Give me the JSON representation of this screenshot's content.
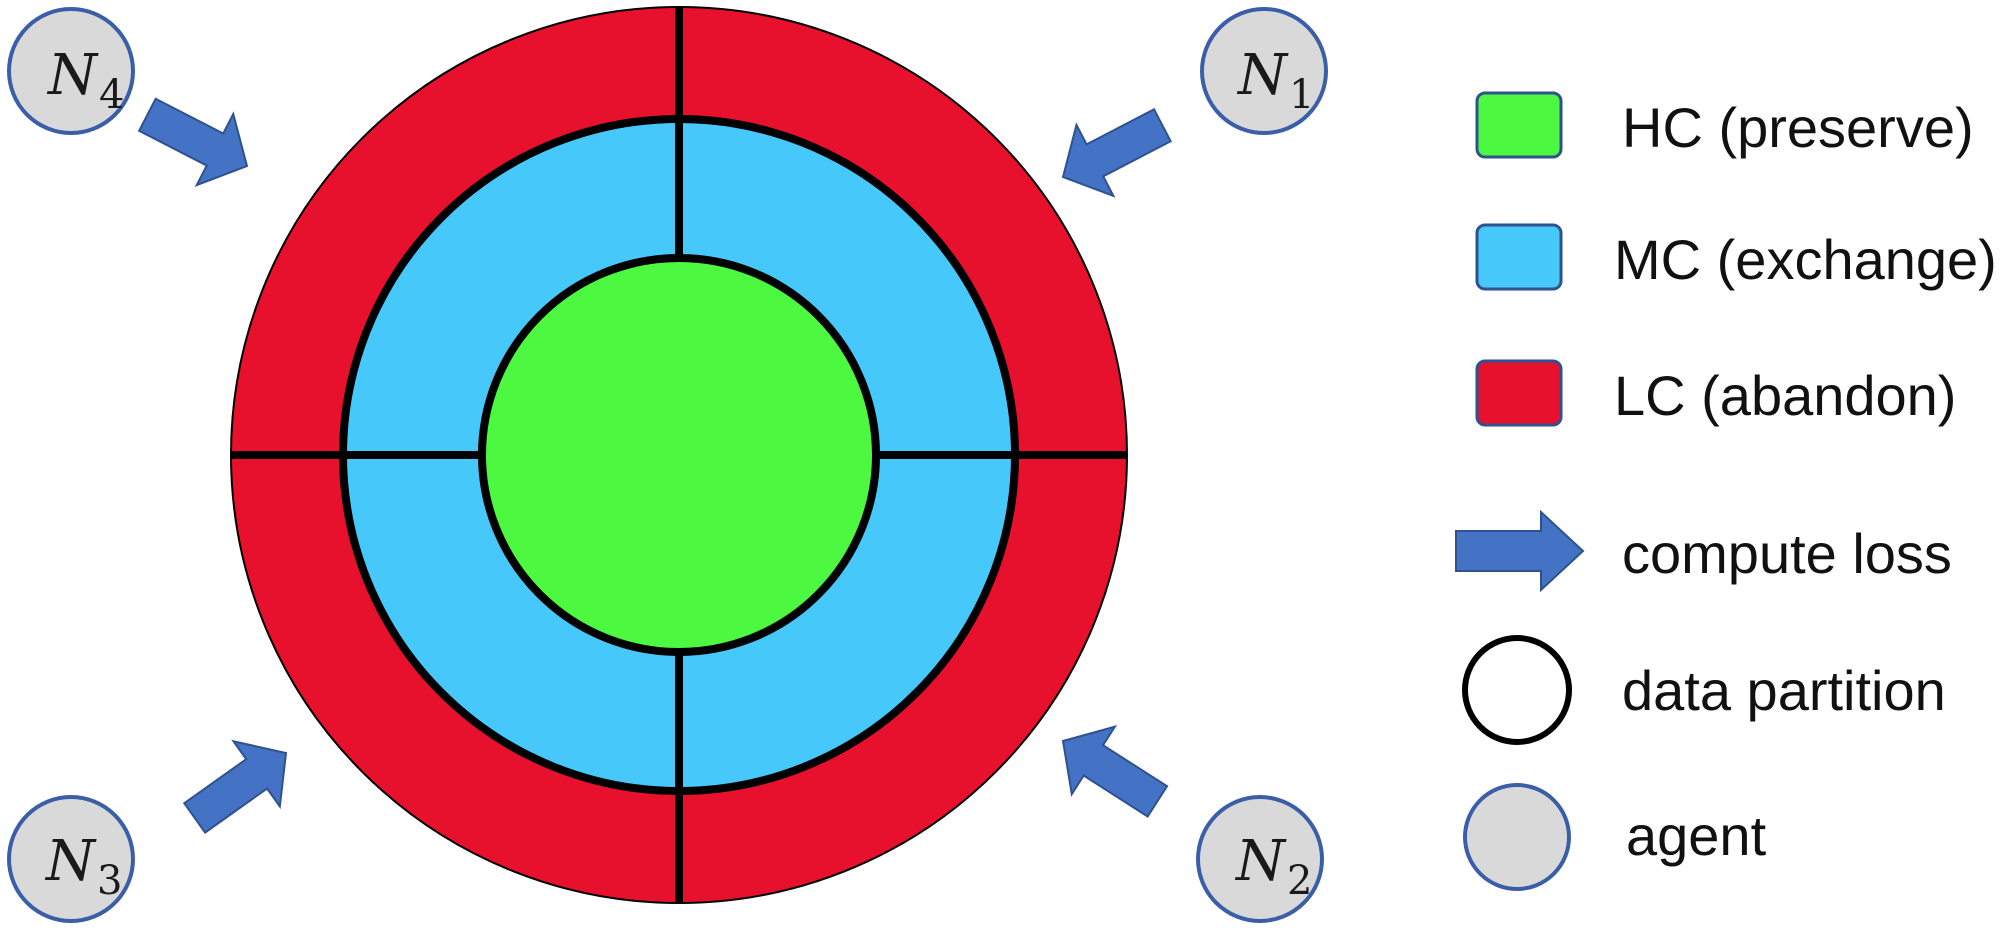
{
  "colors": {
    "hc": "#4cf840",
    "mc": "#47c8fb",
    "lc": "#e8112d",
    "arrow": "#4472c4",
    "agent_fill": "#d9d9d9",
    "agent_stroke": "#3a5ea8",
    "divider": "#000000"
  },
  "agents": [
    {
      "id": "n1",
      "symbol": "N",
      "subscript": "1"
    },
    {
      "id": "n2",
      "symbol": "N",
      "subscript": "2"
    },
    {
      "id": "n3",
      "symbol": "N",
      "subscript": "3"
    },
    {
      "id": "n4",
      "symbol": "N",
      "subscript": "4"
    }
  ],
  "legend": {
    "hc": "HC (preserve)",
    "mc": "MC (exchange)",
    "lc": "LC (abandon)",
    "arrow": "compute loss",
    "partition": "data partition",
    "agent": "agent"
  }
}
